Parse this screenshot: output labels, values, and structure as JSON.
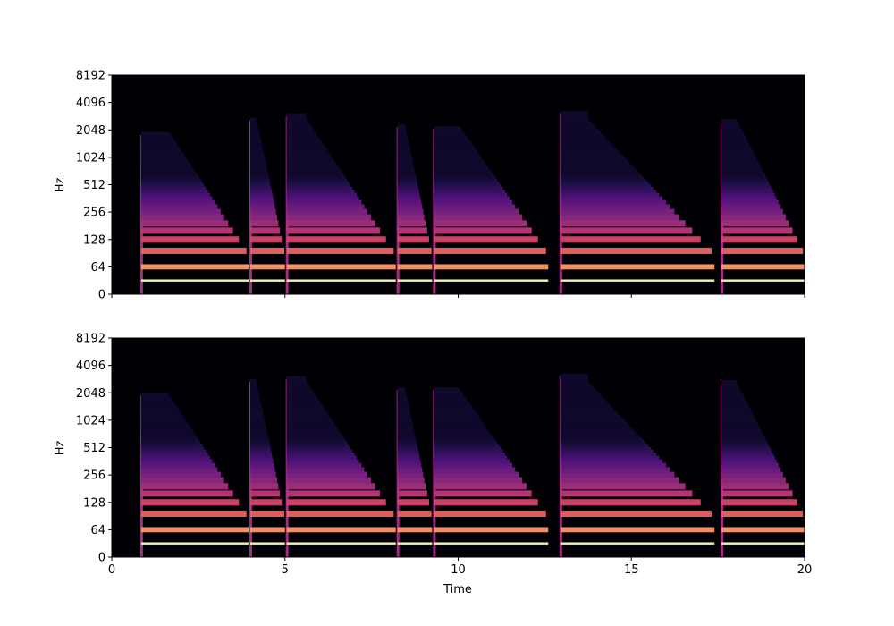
{
  "chart_data": [
    {
      "type": "heatmap",
      "subtype": "spectrogram",
      "title": "",
      "xlabel": "",
      "ylabel": "Hz",
      "xlim": [
        0,
        20
      ],
      "x_ticks": [
        0,
        5,
        10,
        15,
        20
      ],
      "x_tick_labels_visible": false,
      "y_scale": "log",
      "y_ticks": [
        0,
        64,
        128,
        256,
        512,
        1024,
        2048,
        4096,
        8192
      ],
      "y_tick_labels": [
        "0",
        "64",
        "128",
        "256",
        "512",
        "1024",
        "2048",
        "4096",
        "8192"
      ],
      "colormap": "magma",
      "colors": {
        "low": "#000004",
        "mid": "#b73779",
        "high": "#fcfdbf"
      },
      "fundamental_hz": 32,
      "notes": [
        {
          "onset": 0.85,
          "offset": 3.95,
          "top_hz": 1800
        },
        {
          "onset": 4.0,
          "offset": 5.0,
          "top_hz": 2600
        },
        {
          "onset": 5.05,
          "offset": 8.2,
          "top_hz": 2900
        },
        {
          "onset": 8.25,
          "offset": 9.25,
          "top_hz": 2200
        },
        {
          "onset": 9.3,
          "offset": 12.6,
          "top_hz": 2100
        },
        {
          "onset": 12.95,
          "offset": 17.4,
          "top_hz": 3100
        },
        {
          "onset": 17.6,
          "offset": 20.0,
          "top_hz": 2500
        }
      ]
    },
    {
      "type": "heatmap",
      "subtype": "spectrogram",
      "title": "",
      "xlabel": "Time",
      "ylabel": "Hz",
      "xlim": [
        0,
        20
      ],
      "x_ticks": [
        0,
        5,
        10,
        15,
        20
      ],
      "x_tick_labels": [
        "0",
        "5",
        "10",
        "15",
        "20"
      ],
      "y_scale": "log",
      "y_ticks": [
        0,
        64,
        128,
        256,
        512,
        1024,
        2048,
        4096,
        8192
      ],
      "y_tick_labels": [
        "0",
        "64",
        "128",
        "256",
        "512",
        "1024",
        "2048",
        "4096",
        "8192"
      ],
      "colormap": "magma",
      "colors": {
        "low": "#000004",
        "mid": "#b73779",
        "high": "#fcfdbf"
      },
      "fundamental_hz": 32,
      "notes": [
        {
          "onset": 0.85,
          "offset": 3.95,
          "top_hz": 1900
        },
        {
          "onset": 4.0,
          "offset": 5.0,
          "top_hz": 2700
        },
        {
          "onset": 5.05,
          "offset": 8.2,
          "top_hz": 2900
        },
        {
          "onset": 8.25,
          "offset": 9.25,
          "top_hz": 2200
        },
        {
          "onset": 9.3,
          "offset": 12.6,
          "top_hz": 2200
        },
        {
          "onset": 12.95,
          "offset": 17.4,
          "top_hz": 3100
        },
        {
          "onset": 17.6,
          "offset": 20.0,
          "top_hz": 2600
        }
      ]
    }
  ]
}
